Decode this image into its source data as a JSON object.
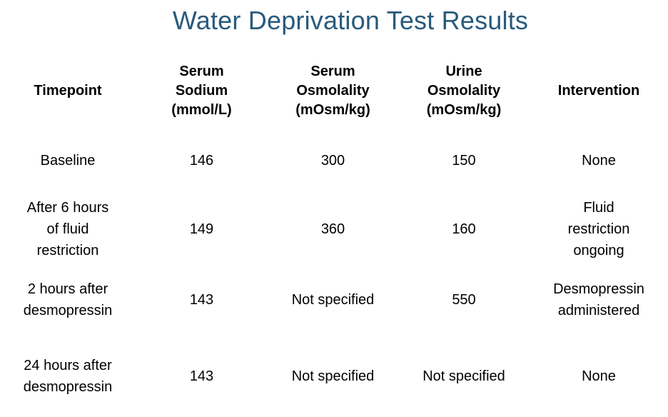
{
  "title": "Water Deprivation Test Results",
  "title_color": "#285A7C",
  "table": {
    "columns": [
      {
        "label": "Timepoint"
      },
      {
        "label": "Serum\nSodium\n(mmol/L)"
      },
      {
        "label": "Serum\nOsmolality\n(mOsm/kg)"
      },
      {
        "label": "Urine\nOsmolality\n(mOsm/kg)"
      },
      {
        "label": "Intervention"
      }
    ],
    "rows": [
      {
        "timepoint": "Baseline",
        "serum_sodium": "146",
        "serum_osmolality": "300",
        "urine_osmolality": "150",
        "intervention": "None"
      },
      {
        "timepoint": "After 6 hours\nof fluid\nrestriction",
        "serum_sodium": "149",
        "serum_osmolality": "360",
        "urine_osmolality": "160",
        "intervention": "Fluid\nrestriction\nongoing"
      },
      {
        "timepoint": "2 hours after\ndesmopressin",
        "serum_sodium": "143",
        "serum_osmolality": "Not specified",
        "urine_osmolality": "550",
        "intervention": "Desmopressin\nadministered"
      },
      {
        "timepoint": "24 hours after\ndesmopressin",
        "serum_sodium": "143",
        "serum_osmolality": "Not specified",
        "urine_osmolality": "Not specified",
        "intervention": "None"
      }
    ]
  }
}
